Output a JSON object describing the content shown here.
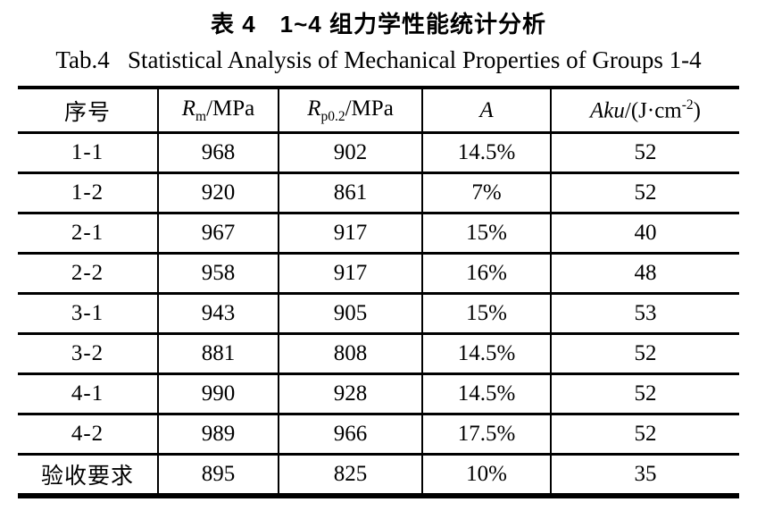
{
  "titles": {
    "zh": "表 4　1~4 组力学性能统计分析",
    "en": "Tab.4   Statistical Analysis of Mechanical Properties of Groups 1-4"
  },
  "table": {
    "headers": [
      {
        "text": "序号"
      },
      {
        "italic": "R",
        "sub": "m",
        "rest": "/MPa"
      },
      {
        "italic": "R",
        "sub": "p0.2",
        "rest": "/MPa"
      },
      {
        "italic": "A"
      },
      {
        "italic": "Aku",
        "rest": "/(J·cm",
        "sup": "-2",
        "rest2": ")"
      }
    ],
    "rows": [
      {
        "cells": [
          "1-1",
          "968",
          "902",
          "14.5%",
          "52"
        ]
      },
      {
        "cells": [
          "1-2",
          "920",
          "861",
          "7%",
          "52"
        ]
      },
      {
        "cells": [
          "2-1",
          "967",
          "917",
          "15%",
          "40"
        ]
      },
      {
        "cells": [
          "2-2",
          "958",
          "917",
          "16%",
          "48"
        ]
      },
      {
        "cells": [
          "3-1",
          "943",
          "905",
          "15%",
          "53"
        ]
      },
      {
        "cells": [
          "3-2",
          "881",
          "808",
          "14.5%",
          "52"
        ]
      },
      {
        "cells": [
          "4-1",
          "990",
          "928",
          "14.5%",
          "52"
        ]
      },
      {
        "cells": [
          "4-2",
          "989",
          "966",
          "17.5%",
          "52"
        ]
      },
      {
        "cells": [
          "验收要求",
          "895",
          "825",
          "10%",
          "35"
        ]
      }
    ],
    "colors": {
      "text": "#000000",
      "rule": "#000000",
      "background": "#ffffff"
    }
  }
}
